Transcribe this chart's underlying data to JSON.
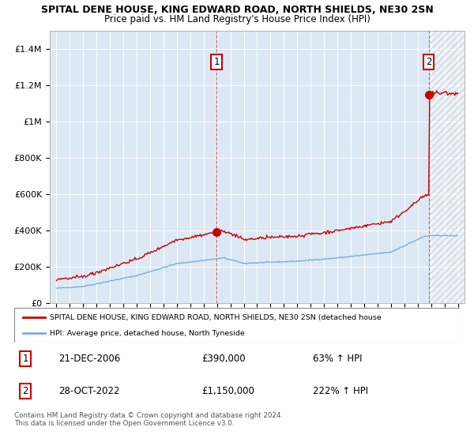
{
  "title": "SPITAL DENE HOUSE, KING EDWARD ROAD, NORTH SHIELDS, NE30 2SN",
  "subtitle": "Price paid vs. HM Land Registry's House Price Index (HPI)",
  "background_color": "#ffffff",
  "plot_bg_color": "#dce9f5",
  "grid_color": "#ffffff",
  "hpi_color": "#7ab0d8",
  "price_color": "#cc0000",
  "sale1_year": 2006.97,
  "sale1_price": 390000,
  "sale2_year": 2022.83,
  "sale2_price": 1150000,
  "legend_label_price": "SPITAL DENE HOUSE, KING EDWARD ROAD, NORTH SHIELDS, NE30 2SN (detached house",
  "legend_label_hpi": "HPI: Average price, detached house, North Tyneside",
  "table_row1": [
    "1",
    "21-DEC-2006",
    "£390,000",
    "63% ↑ HPI"
  ],
  "table_row2": [
    "2",
    "28-OCT-2022",
    "£1,150,000",
    "222% ↑ HPI"
  ],
  "footer": "Contains HM Land Registry data © Crown copyright and database right 2024.\nThis data is licensed under the Open Government Licence v3.0.",
  "xmin": 1994.5,
  "xmax": 2025.5,
  "ymin": 0,
  "ymax": 1500000,
  "ytick_vals": [
    0,
    200000,
    400000,
    600000,
    800000,
    1000000,
    1200000,
    1400000
  ],
  "ytick_labels": [
    "£0",
    "£200K",
    "£400K",
    "£600K",
    "£800K",
    "£1M",
    "£1.2M",
    "£1.4M"
  ],
  "hatch_start": 2022.83,
  "hatch_end": 2025.5
}
